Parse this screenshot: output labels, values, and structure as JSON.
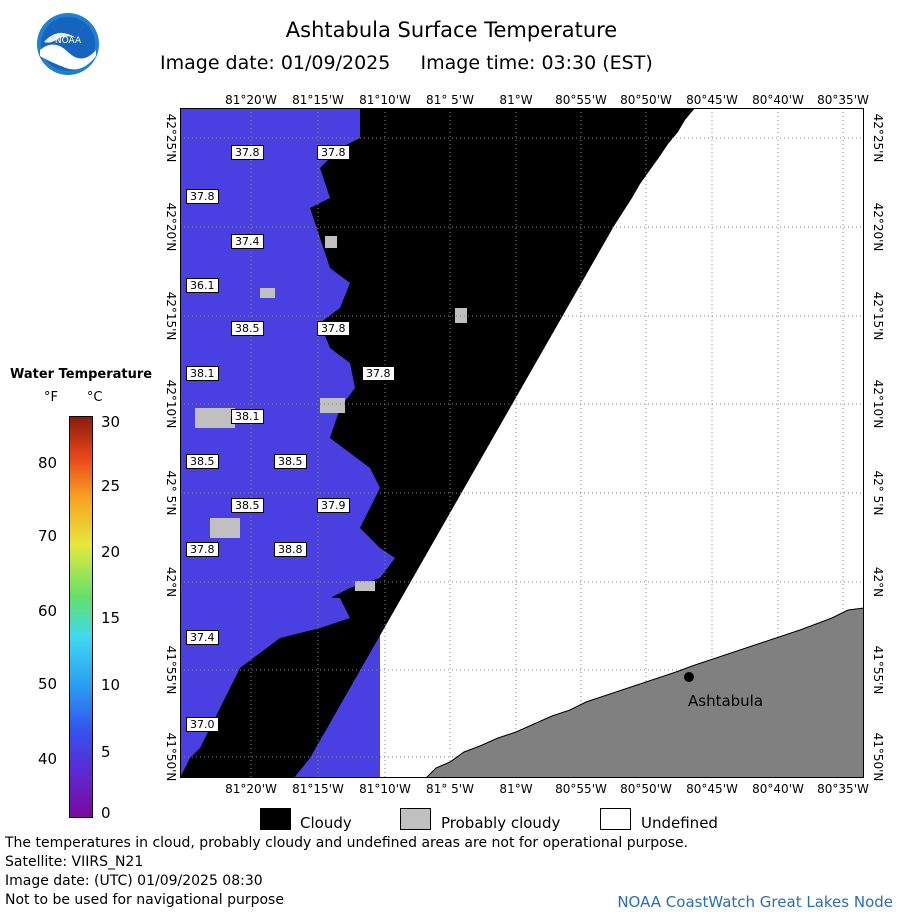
{
  "header": {
    "title": "Ashtabula Surface Temperature",
    "subtitle": "Image date: 01/09/2025     Image time: 03:30 (EST)",
    "logo_text": "NOAA"
  },
  "map": {
    "lon_ticks": [
      "81°20'W",
      "81°15'W",
      "81°10'W",
      "81° 5'W",
      "81°W",
      "80°55'W",
      "80°50'W",
      "80°45'W",
      "80°40'W",
      "80°35'W"
    ],
    "lat_ticks": [
      "42°25'N",
      "42°20'N",
      "42°15'N",
      "42°10'N",
      "42° 5'N",
      "42°N",
      "41°55'N",
      "41°50'N"
    ],
    "city_label": "Ashtabula",
    "temperature_labels": [
      "37.8",
      "37.8",
      "37.8",
      "37.4",
      "36.1",
      "38.5",
      "37.8",
      "38.1",
      "37.8",
      "38.1",
      "38.5",
      "38.5",
      "38.5",
      "37.9",
      "37.8",
      "38.8",
      "37.4",
      "37.0"
    ],
    "colors": {
      "cloudy": "#000000",
      "probably_cloudy": "#c0c0c0",
      "undefined": "#ffffff",
      "land": "#808080",
      "water": "#4a3fe0"
    }
  },
  "legend": {
    "title": "Water Temperature",
    "units": "°F       °C",
    "fahrenheit_ticks": [
      "80",
      "70",
      "60",
      "50",
      "40"
    ],
    "celsius_ticks": [
      "30",
      "25",
      "20",
      "15",
      "10",
      "5",
      "0"
    ]
  },
  "key": {
    "cloudy": "Cloudy",
    "probably_cloudy": "Probably cloudy",
    "undefined": "Undefined"
  },
  "footer": {
    "line1": "The temperatures in cloud, probably cloudy and undefined areas are not for operational purpose.",
    "line2": "Satellite: VIIRS_N21",
    "line3": "Image date: (UTC) 01/09/2025  08:30",
    "line4": "Not to be used for navigational purpose",
    "credit": "NOAA CoastWatch Great Lakes Node"
  }
}
